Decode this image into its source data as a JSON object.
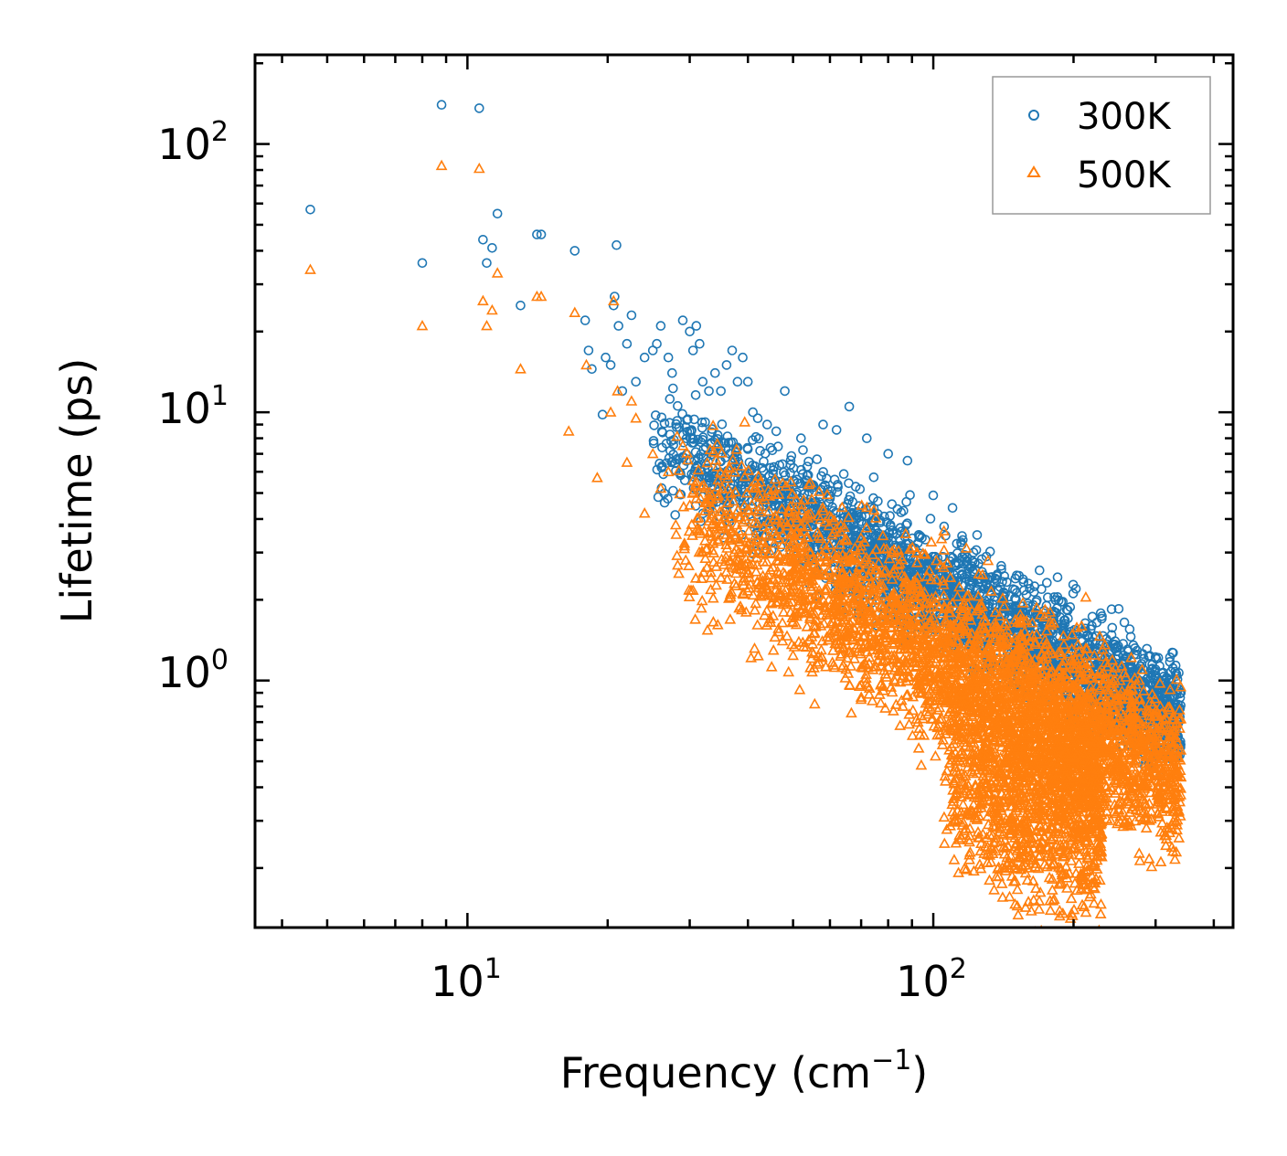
{
  "chart_data": {
    "type": "scatter",
    "title": "",
    "xlabel": "Frequency (cm",
    "xlabel_superscript": "−1",
    "xlabel_suffix": ")",
    "ylabel": "Lifetime (ps)",
    "xscale": "log",
    "yscale": "log",
    "xlim": [
      3.5,
      440
    ],
    "ylim": [
      0.12,
      215
    ],
    "legend_position": "top-right",
    "x_tick_labels": [
      {
        "value": 10,
        "base": "10",
        "exp": "1"
      },
      {
        "value": 100,
        "base": "10",
        "exp": "2"
      }
    ],
    "y_tick_labels": [
      {
        "value": 1,
        "base": "10",
        "exp": "0"
      },
      {
        "value": 10,
        "base": "10",
        "exp": "1"
      },
      {
        "value": 100,
        "base": "10",
        "exp": "2"
      }
    ],
    "series": [
      {
        "name": "300K",
        "marker": "circle",
        "color": "#1f77b4",
        "points": [
          [
            4.6,
            57
          ],
          [
            8.0,
            36
          ],
          [
            8.8,
            140
          ],
          [
            10.6,
            136
          ],
          [
            10.8,
            44
          ],
          [
            11.0,
            36
          ],
          [
            11.3,
            41
          ],
          [
            11.6,
            55
          ],
          [
            13.0,
            25
          ],
          [
            14.1,
            46
          ],
          [
            14.4,
            46
          ],
          [
            17.0,
            40
          ],
          [
            17.9,
            22
          ],
          [
            18.2,
            17
          ],
          [
            18.5,
            14.5
          ],
          [
            19.5,
            9.8
          ],
          [
            19.8,
            16
          ],
          [
            20.3,
            15
          ],
          [
            20.6,
            25
          ],
          [
            20.7,
            27
          ],
          [
            20.9,
            42
          ],
          [
            21.1,
            21
          ],
          [
            21.5,
            12
          ],
          [
            22.0,
            18
          ],
          [
            22.5,
            23
          ],
          [
            23.0,
            13
          ],
          [
            24.0,
            16
          ],
          [
            25.0,
            17
          ],
          [
            25.5,
            18
          ],
          [
            26.0,
            21
          ],
          [
            27.0,
            16
          ],
          [
            27.5,
            14
          ],
          [
            29.0,
            22
          ],
          [
            30.0,
            20
          ],
          [
            30.5,
            17
          ],
          [
            31.0,
            21
          ],
          [
            31.5,
            18
          ],
          [
            32.0,
            13
          ],
          [
            33.0,
            12
          ],
          [
            34.0,
            14
          ],
          [
            35.0,
            12
          ],
          [
            36.0,
            15
          ],
          [
            37.0,
            17
          ],
          [
            38.0,
            13
          ],
          [
            39.0,
            16
          ],
          [
            40.0,
            13
          ],
          [
            41.0,
            10
          ],
          [
            42.0,
            9.5
          ],
          [
            44.0,
            9
          ],
          [
            46.0,
            8.5
          ],
          [
            48.0,
            12
          ],
          [
            52.0,
            8
          ],
          [
            58.0,
            9
          ],
          [
            62.0,
            8.6
          ],
          [
            66.0,
            10.5
          ],
          [
            72.0,
            8
          ],
          [
            80.0,
            7
          ],
          [
            88.0,
            6.6
          ],
          [
            100.0,
            4.9
          ],
          [
            110.0,
            4.4
          ],
          [
            115.0,
            3.2
          ],
          [
            122.0,
            3.0
          ],
          [
            130.0,
            2.9
          ],
          [
            140.0,
            2.6
          ],
          [
            150.0,
            2.4
          ],
          [
            160.0,
            2.3
          ],
          [
            175.0,
            1.9
          ],
          [
            190.0,
            1.6
          ],
          [
            210.0,
            1.5
          ],
          [
            230.0,
            1.7
          ],
          [
            250.0,
            1.85
          ],
          [
            270.0,
            1.25
          ],
          [
            300.0,
            1.1
          ],
          [
            320.0,
            1.0
          ],
          [
            340.0,
            0.9
          ]
        ]
      },
      {
        "name": "500K",
        "marker": "triangle",
        "color": "#ff7f0e",
        "points": [
          [
            4.6,
            34
          ],
          [
            8.0,
            21
          ],
          [
            8.8,
            83
          ],
          [
            10.6,
            81
          ],
          [
            10.8,
            26
          ],
          [
            11.0,
            21
          ],
          [
            11.3,
            24
          ],
          [
            11.6,
            33
          ],
          [
            13.0,
            14.5
          ],
          [
            14.1,
            27
          ],
          [
            14.4,
            27
          ],
          [
            16.5,
            8.5
          ],
          [
            17.0,
            23.5
          ],
          [
            18.0,
            15
          ],
          [
            19.0,
            5.7
          ],
          [
            20.3,
            10
          ],
          [
            20.6,
            26
          ],
          [
            21.0,
            12
          ],
          [
            22.0,
            6.5
          ],
          [
            22.5,
            11
          ],
          [
            23.0,
            9.5
          ],
          [
            24.0,
            4.2
          ],
          [
            25.0,
            7
          ],
          [
            26.0,
            5.2
          ],
          [
            27.0,
            6
          ],
          [
            28.0,
            3.8
          ],
          [
            29.0,
            7.5
          ],
          [
            30.0,
            4.5
          ],
          [
            31.0,
            5.5
          ],
          [
            32.0,
            3.0
          ],
          [
            34.0,
            4.0
          ],
          [
            36.0,
            3.5
          ],
          [
            38.0,
            2.8
          ],
          [
            40.0,
            2.5
          ],
          [
            42.0,
            3.0
          ],
          [
            44.0,
            2.2
          ],
          [
            48.0,
            2.0
          ],
          [
            52.0,
            1.8
          ],
          [
            56.0,
            1.6
          ],
          [
            60.0,
            1.5
          ],
          [
            65.0,
            1.1
          ],
          [
            70.0,
            0.85
          ],
          [
            78.0,
            0.95
          ],
          [
            86.0,
            0.8
          ],
          [
            95.0,
            0.72
          ],
          [
            105.0,
            0.6
          ],
          [
            115.0,
            0.45
          ],
          [
            120.0,
            0.32
          ],
          [
            125.0,
            0.26
          ],
          [
            132.0,
            0.18
          ],
          [
            140.0,
            0.3
          ],
          [
            150.0,
            0.24
          ],
          [
            160.0,
            0.2
          ],
          [
            175.0,
            0.22
          ],
          [
            190.0,
            0.19
          ],
          [
            210.0,
            0.18
          ],
          [
            230.0,
            0.22
          ],
          [
            250.0,
            0.35
          ],
          [
            270.0,
            0.5
          ],
          [
            300.0,
            0.45
          ],
          [
            320.0,
            0.5
          ],
          [
            340.0,
            0.55
          ]
        ]
      }
    ],
    "dense_regions": [
      {
        "series": "300K",
        "x": [
          25,
          340
        ],
        "logy_center_at_xmin": 0.9,
        "logy_slope": -0.92,
        "spread": 0.1,
        "count": 2800
      },
      {
        "series": "500K",
        "x": [
          28,
          340
        ],
        "logy_center_at_xmin": 0.63,
        "logy_slope": -0.92,
        "spread": 0.16,
        "count": 3200
      },
      {
        "series": "500K",
        "x": [
          105,
          230
        ],
        "logy_center_at_xmin": -0.3,
        "logy_slope": -0.5,
        "spread": 0.2,
        "count": 1400
      }
    ]
  }
}
